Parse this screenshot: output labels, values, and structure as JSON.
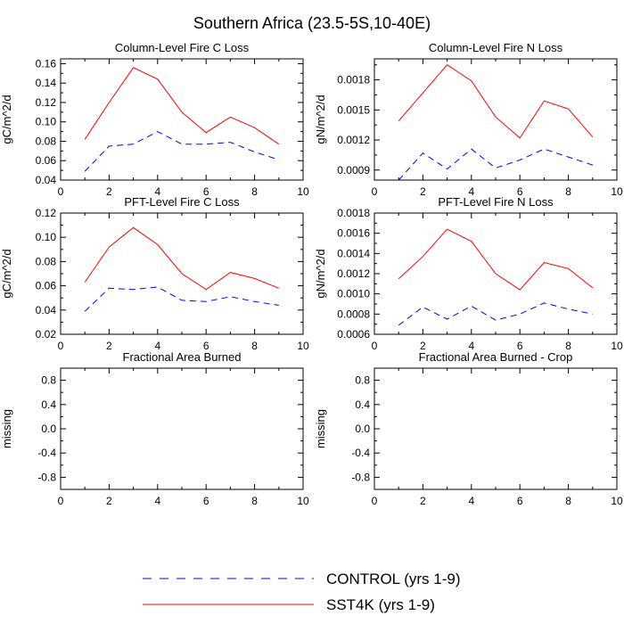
{
  "title": "Southern Africa (23.5-5S,10-40E)",
  "legend": [
    {
      "label": "CONTROL (yrs 1-9)",
      "color": "#0000ff",
      "dash": "dashed"
    },
    {
      "label": "SST4K (yrs 1-9)",
      "color": "#ff0000",
      "dash": "solid"
    }
  ],
  "chart_data": [
    {
      "type": "line",
      "title": "Column-Level Fire C Loss",
      "xlabel": "",
      "ylabel": "gC/m^2/d",
      "xlim": [
        0,
        10
      ],
      "ylim": [
        0.04,
        0.165
      ],
      "xticks": [
        "0",
        "2",
        "4",
        "6",
        "8",
        "10"
      ],
      "yticks": [
        "0.04",
        "0.06",
        "0.08",
        "0.10",
        "0.12",
        "0.14",
        "0.16"
      ],
      "x": [
        1,
        2,
        3,
        4,
        5,
        6,
        7,
        8,
        9
      ],
      "series": [
        {
          "name": "CONTROL (yrs 1-9)",
          "values": [
            0.049,
            0.075,
            0.077,
            0.09,
            0.077,
            0.077,
            0.079,
            0.069,
            0.061
          ]
        },
        {
          "name": "SST4K (yrs 1-9)",
          "values": [
            0.082,
            0.12,
            0.156,
            0.144,
            0.11,
            0.089,
            0.105,
            0.094,
            0.077
          ]
        }
      ]
    },
    {
      "type": "line",
      "title": "Column-Level Fire N Loss",
      "xlabel": "",
      "ylabel": "gN/m^2/d",
      "xlim": [
        0,
        10
      ],
      "ylim": [
        0.0008,
        0.00201
      ],
      "xticks": [
        "0",
        "2",
        "4",
        "6",
        "8",
        "10"
      ],
      "yticks": [
        "0.0009",
        "0.0012",
        "0.0015",
        "0.0018"
      ],
      "x": [
        1,
        2,
        3,
        4,
        5,
        6,
        7,
        8,
        9
      ],
      "series": [
        {
          "name": "CONTROL (yrs 1-9)",
          "values": [
            0.0008,
            0.00107,
            0.00091,
            0.00111,
            0.00092,
            0.001,
            0.00111,
            0.00103,
            0.00095
          ]
        },
        {
          "name": "SST4K (yrs 1-9)",
          "values": [
            0.00139,
            0.00167,
            0.00195,
            0.00179,
            0.00143,
            0.00122,
            0.00159,
            0.00151,
            0.00123
          ]
        }
      ]
    },
    {
      "type": "line",
      "title": "PFT-Level Fire C Loss",
      "xlabel": "",
      "ylabel": "gC/m^2/d",
      "xlim": [
        0,
        10
      ],
      "ylim": [
        0.02,
        0.12
      ],
      "xticks": [
        "0",
        "2",
        "4",
        "6",
        "8",
        "10"
      ],
      "yticks": [
        "0.02",
        "0.04",
        "0.06",
        "0.08",
        "0.10",
        "0.12"
      ],
      "x": [
        1,
        2,
        3,
        4,
        5,
        6,
        7,
        8,
        9
      ],
      "series": [
        {
          "name": "CONTROL (yrs 1-9)",
          "values": [
            0.039,
            0.058,
            0.057,
            0.059,
            0.048,
            0.047,
            0.051,
            0.047,
            0.044
          ]
        },
        {
          "name": "SST4K (yrs 1-9)",
          "values": [
            0.063,
            0.092,
            0.108,
            0.094,
            0.07,
            0.057,
            0.071,
            0.066,
            0.058
          ]
        }
      ]
    },
    {
      "type": "line",
      "title": "PFT-Level Fire N Loss",
      "xlabel": "",
      "ylabel": "gN/m^2/d",
      "xlim": [
        0,
        10
      ],
      "ylim": [
        0.0006,
        0.0018
      ],
      "xticks": [
        "0",
        "2",
        "4",
        "6",
        "8",
        "10"
      ],
      "yticks": [
        "0.0006",
        "0.0008",
        "0.0010",
        "0.0012",
        "0.0014",
        "0.0016",
        "0.0018"
      ],
      "x": [
        1,
        2,
        3,
        4,
        5,
        6,
        7,
        8,
        9
      ],
      "series": [
        {
          "name": "CONTROL (yrs 1-9)",
          "values": [
            0.00069,
            0.00087,
            0.00075,
            0.00088,
            0.00074,
            0.0008,
            0.00091,
            0.00085,
            0.0008
          ]
        },
        {
          "name": "SST4K (yrs 1-9)",
          "values": [
            0.00115,
            0.00137,
            0.00164,
            0.00152,
            0.0012,
            0.00104,
            0.00131,
            0.00125,
            0.00106
          ]
        }
      ]
    },
    {
      "type": "line",
      "title": "Fractional Area Burned",
      "xlabel": "",
      "ylabel": "missing",
      "xlim": [
        0,
        10
      ],
      "ylim": [
        -1.0,
        1.0
      ],
      "xticks": [
        "0",
        "2",
        "4",
        "6",
        "8",
        "10"
      ],
      "yticks": [
        "-0.8",
        "-0.4",
        "0.0",
        "0.4",
        "0.8"
      ],
      "x": [],
      "series": []
    },
    {
      "type": "line",
      "title": "Fractional Area Burned - Crop",
      "xlabel": "",
      "ylabel": "missing",
      "xlim": [
        0,
        10
      ],
      "ylim": [
        -1.0,
        1.0
      ],
      "xticks": [
        "0",
        "2",
        "4",
        "6",
        "8",
        "10"
      ],
      "yticks": [
        "-0.8",
        "-0.4",
        "0.0",
        "0.4",
        "0.8"
      ],
      "x": [],
      "series": []
    }
  ]
}
